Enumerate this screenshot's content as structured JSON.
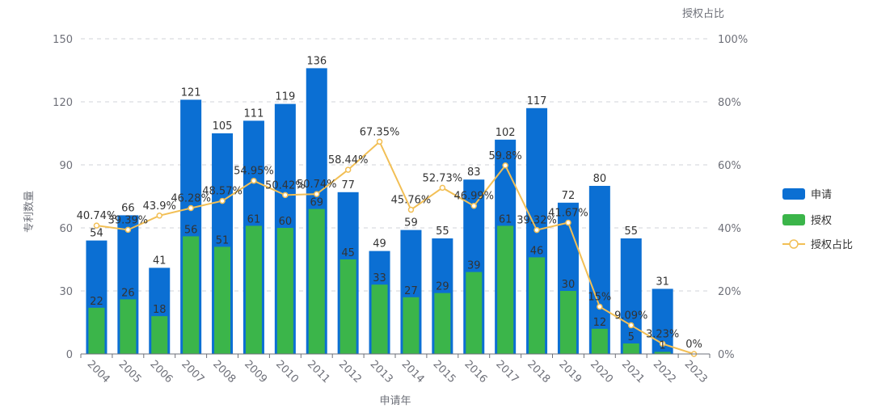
{
  "chart_data": {
    "type": "bar",
    "title": "",
    "xlabel": "申请年",
    "ylabel": "专利数量",
    "y2label": "授权占比",
    "categories": [
      "2004",
      "2005",
      "2006",
      "2007",
      "2008",
      "2009",
      "2010",
      "2011",
      "2012",
      "2013",
      "2014",
      "2015",
      "2016",
      "2017",
      "2018",
      "2019",
      "2020",
      "2021",
      "2022",
      "2023"
    ],
    "ylim": [
      0,
      150
    ],
    "yticks": [
      0,
      30,
      60,
      90,
      120,
      150
    ],
    "y2lim": [
      0,
      100
    ],
    "y2ticks": [
      "0%",
      "20%",
      "40%",
      "60%",
      "80%",
      "100%"
    ],
    "grid": true,
    "legend_position": "right",
    "series": [
      {
        "name": "申请",
        "type": "bar",
        "color": "#0b6fd3",
        "values": [
          54,
          66,
          41,
          121,
          105,
          111,
          119,
          136,
          77,
          49,
          59,
          55,
          83,
          102,
          117,
          72,
          80,
          55,
          31,
          null
        ]
      },
      {
        "name": "授权",
        "type": "bar",
        "color": "#3bb54a",
        "values": [
          22,
          26,
          18,
          56,
          51,
          61,
          60,
          69,
          45,
          33,
          27,
          29,
          39,
          61,
          46,
          30,
          12,
          5,
          1,
          null
        ]
      },
      {
        "name": "授权占比",
        "type": "line",
        "axis": "right",
        "color": "#f2bf55",
        "values": [
          40.74,
          39.39,
          43.9,
          46.28,
          48.57,
          54.95,
          50.42,
          50.74,
          58.44,
          67.35,
          45.76,
          52.73,
          46.99,
          59.8,
          39.32,
          41.67,
          15,
          9.09,
          3.23,
          0
        ],
        "labels": [
          "40.74%",
          "39.39%",
          "43.9%",
          "46.28%",
          "48.57%",
          "54.95%",
          "50.42%",
          "50.74%",
          "58.44%",
          "67.35%",
          "45.76%",
          "52.73%",
          "46.99%",
          "59.8%",
          "39.32%",
          "41.67%",
          "15%",
          "9.09%",
          "3.23%",
          "0%"
        ]
      }
    ]
  }
}
